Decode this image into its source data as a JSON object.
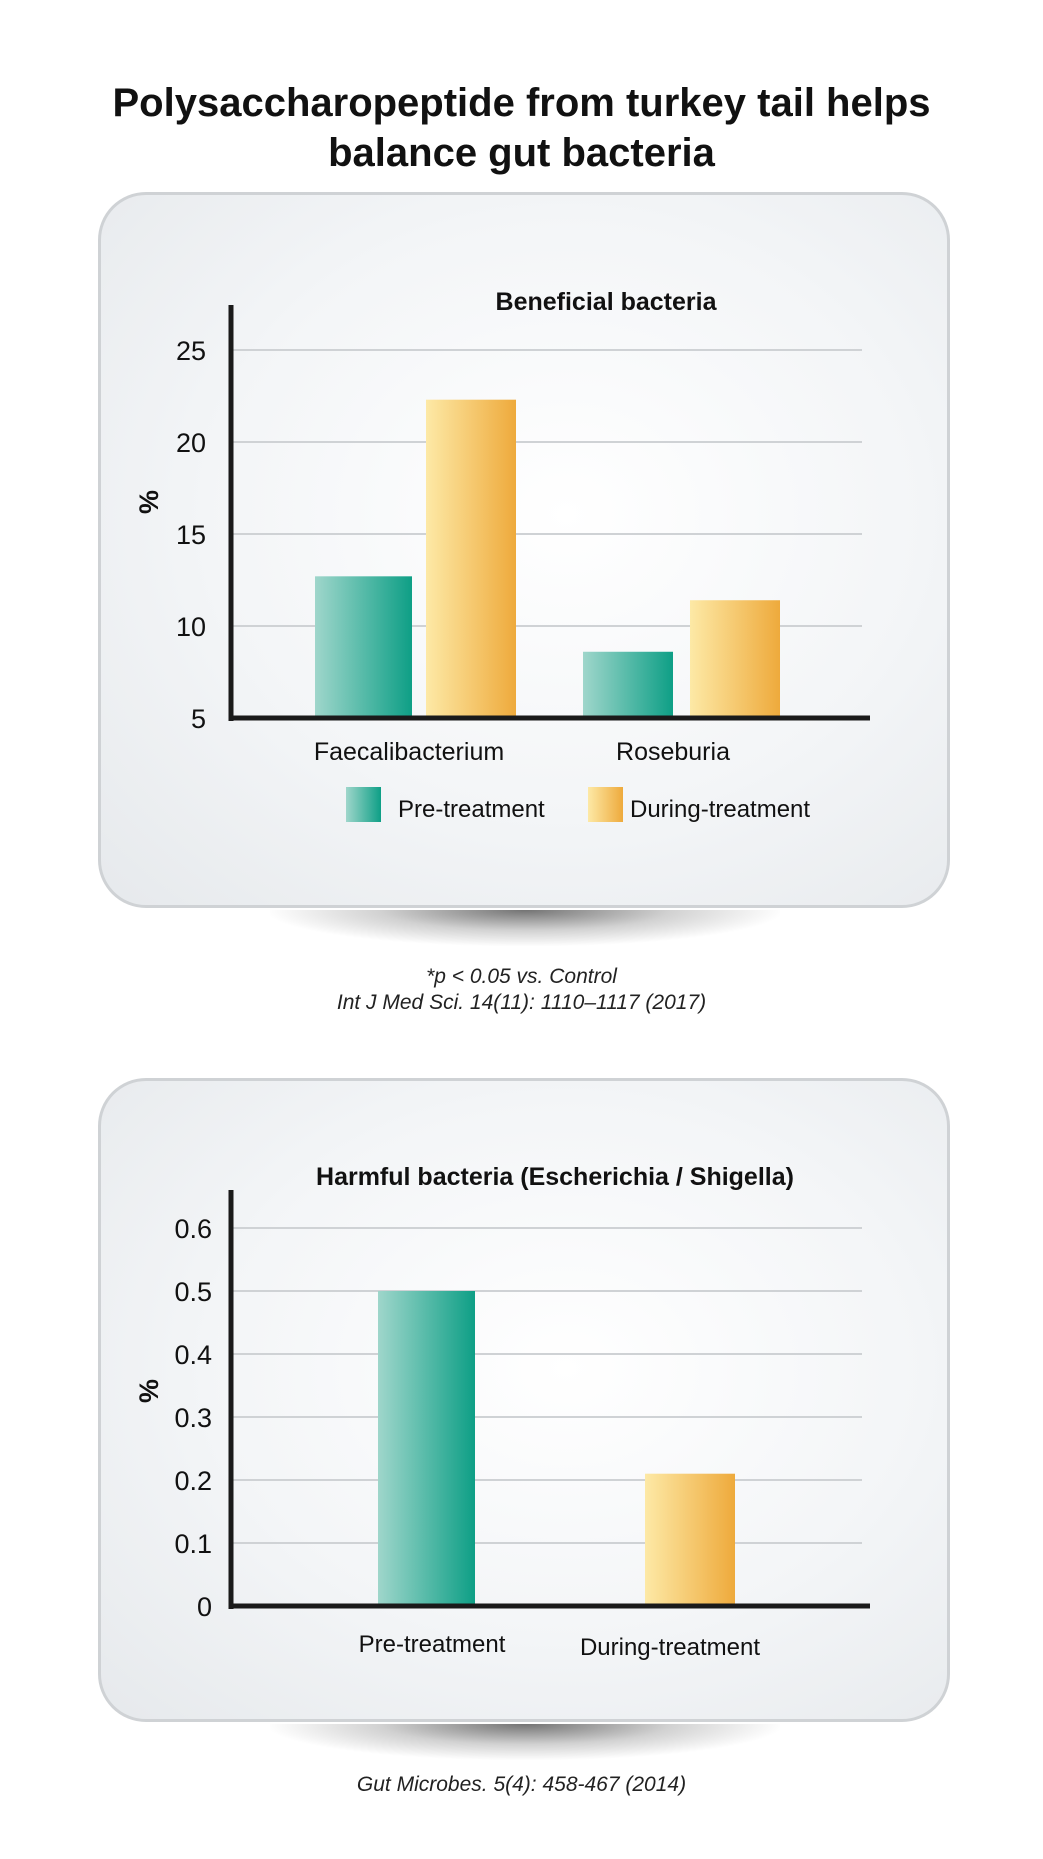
{
  "page": {
    "title": "Polysaccharopeptide from turkey tail helps balance gut bacteria",
    "captions": {
      "chart1_footnote": "*p < 0.05 vs. Control",
      "chart1_source": "Int J Med Sci. 14(11): 1110–1117 (2017)",
      "chart2_source": "Gut Microbes. 5(4): 458-467 (2014)"
    }
  },
  "colors": {
    "pre_treatment_light": "#9fd6cb",
    "pre_treatment_dark": "#0e9f86",
    "during_treatment_light": "#fde9a6",
    "during_treatment_dark": "#eeaa3c",
    "axis": "#1a1a1a",
    "grid": "#cfd2d5"
  },
  "chart_data": [
    {
      "type": "bar",
      "title": "Beneficial bacteria",
      "ylabel": "%",
      "xlabel": "",
      "ylim": [
        5,
        27
      ],
      "yticks": [
        5,
        10,
        15,
        20,
        25
      ],
      "grid": true,
      "legend": "bottom",
      "categories": [
        "Faecalibacterium",
        "Roseburia"
      ],
      "series": [
        {
          "name": "Pre-treatment",
          "values": [
            12.7,
            8.6
          ]
        },
        {
          "name": "During-treatment",
          "values": [
            22.3,
            11.4
          ]
        }
      ]
    },
    {
      "type": "bar",
      "title": "Harmful bacteria (Escherichia / Shigella)",
      "ylabel": "%",
      "xlabel": "",
      "ylim": [
        0,
        0.66
      ],
      "yticks": [
        0,
        0.1,
        0.2,
        0.3,
        0.4,
        0.5,
        0.6
      ],
      "grid": true,
      "categories": [
        "Pre-treatment",
        "During-treatment"
      ],
      "values": [
        0.5,
        0.21
      ]
    }
  ]
}
